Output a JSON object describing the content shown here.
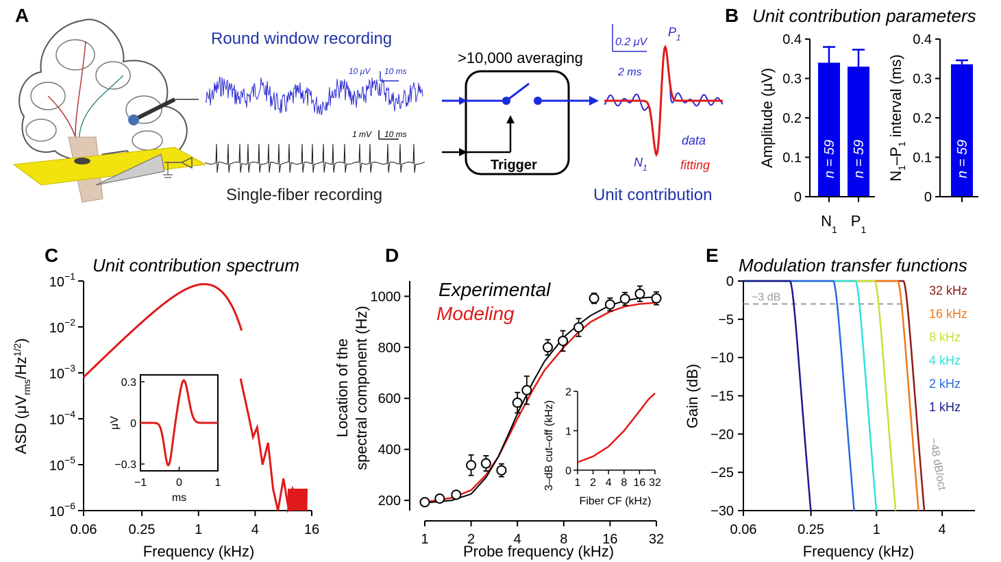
{
  "panels": {
    "A": {
      "letter": "A",
      "rw_title": "Round window recording",
      "rw_scale_uv": "10 μV",
      "rw_scale_ms": "10 ms",
      "sf_title": "Single-fiber recording",
      "sf_scale_mv": "1 mV",
      "sf_scale_ms": "10 ms",
      "averaging": ">10,000 averaging",
      "trigger": "Trigger",
      "uc_scale_uv": "0.2 μV",
      "uc_scale_ms": "2 ms",
      "p1": "P",
      "n1": "N",
      "sub1": "1",
      "legend_data": "data",
      "legend_fit": "fitting",
      "uc_title": "Unit contribution"
    },
    "B": {
      "letter": "B",
      "title": "Unit contribution parameters",
      "ylabel_left": "Amplitude (μV)",
      "ylabel_right_parts": [
        "N",
        "1",
        "–P",
        "1",
        " interval (ms)"
      ],
      "bar_n_label": "n = 59",
      "yticks": [
        "0",
        "0.1",
        "0.2",
        "0.3",
        "0.4"
      ],
      "xcat_parts": [
        [
          "N",
          "1"
        ],
        [
          "P",
          "1"
        ]
      ]
    },
    "C": {
      "letter": "C",
      "title": "Unit contribution spectrum",
      "xlabel": "Frequency (kHz)",
      "ylabel_parts": [
        "ASD (μV",
        "rms",
        "/Hz",
        "1/2",
        ")"
      ],
      "xticks": [
        "0.06",
        "0.25",
        "1",
        "4",
        "16"
      ],
      "ytick_base": "10",
      "ytick_exps": [
        "−1",
        "−2",
        "−3",
        "−4",
        "−5",
        "−6"
      ],
      "inset_yticks": [
        "0.3",
        "0",
        "−0.3"
      ],
      "inset_xticks": [
        "−1",
        "0",
        "1"
      ],
      "inset_ylabel": "μV",
      "inset_xlabel": "ms"
    },
    "D": {
      "letter": "D",
      "legend_exp": "Experimental",
      "legend_mod": "Modeling",
      "xlabel": "Probe frequency (kHz)",
      "ylabel_line1": "Location of the",
      "ylabel_line2": "spectral component (Hz)",
      "xticks": [
        "1",
        "2",
        "4",
        "8",
        "16",
        "32"
      ],
      "yticks": [
        "200",
        "400",
        "600",
        "800",
        "1000"
      ],
      "inset_ylabel": "3–dB cut–off (kHz)",
      "inset_xlabel": "Fiber CF (kHz)",
      "inset_xticks": [
        "1",
        "2",
        "4",
        "8",
        "16",
        "32"
      ],
      "inset_yticks": [
        "0",
        "1",
        "2"
      ]
    },
    "E": {
      "letter": "E",
      "title": "Modulation transfer functions",
      "xlabel": "Frequency (kHz)",
      "ylabel": "Gain (dB)",
      "xticks": [
        "0.06",
        "0.25",
        "1",
        "4"
      ],
      "yticks": [
        "0",
        "−5",
        "−10",
        "−15",
        "−20",
        "−25",
        "−30"
      ],
      "ref_label": "−3 dB",
      "slope_label": "−48 dB/oct"
    }
  },
  "colors": {
    "blue_bar": "#0000ee",
    "red": "#e01a1a",
    "trace_blue": "#2a2ad0",
    "text_blue": "#2233aa",
    "gray": "#999999"
  },
  "chart_data": [
    {
      "id": "B-amplitude",
      "type": "bar",
      "title": "Unit contribution parameters",
      "ylabel": "Amplitude (μV)",
      "categories": [
        "N1",
        "P1"
      ],
      "values": [
        0.34,
        0.33
      ],
      "errors": [
        0.04,
        0.043
      ],
      "ylim": [
        0,
        0.4
      ],
      "bar_labels": [
        "n = 59",
        "n = 59"
      ]
    },
    {
      "id": "B-interval",
      "type": "bar",
      "ylabel": "N1–P1 interval (ms)",
      "categories": [
        ""
      ],
      "values": [
        0.336
      ],
      "errors": [
        0.01
      ],
      "ylim": [
        0,
        0.4
      ],
      "bar_labels": [
        "n = 59"
      ]
    },
    {
      "id": "C-spectrum",
      "type": "line",
      "title": "Unit contribution spectrum",
      "xlabel": "Frequency (kHz)",
      "ylabel": "ASD (μVrms/Hz1/2)",
      "xscale": "log",
      "yscale": "log",
      "xlim": [
        0.06,
        16
      ],
      "ylim": [
        1e-06,
        0.1
      ],
      "x": [
        0.06,
        0.125,
        0.25,
        0.5,
        0.75,
        1,
        1.3,
        1.7,
        2.2,
        2.8,
        3.4,
        3.8,
        4.2,
        4.8,
        5.5,
        6.2,
        7,
        8,
        9,
        10,
        12,
        14
      ],
      "y": [
        0.0009,
        0.004,
        0.016,
        0.05,
        0.075,
        0.083,
        0.07,
        0.03,
        0.006,
        0.00075,
        0.00012,
        4e-05,
        6.5e-05,
        1e-05,
        3e-05,
        3e-06,
        1e-06,
        5e-06,
        1.2e-06,
        3e-06,
        1.5e-06,
        2e-06
      ]
    },
    {
      "id": "C-inset-waveform",
      "type": "line",
      "xlabel": "ms",
      "ylabel": "μV",
      "xlim": [
        -1,
        1
      ],
      "ylim": [
        -0.35,
        0.35
      ],
      "x": [
        -1,
        -0.6,
        -0.45,
        -0.3,
        -0.15,
        0,
        0.15,
        0.3,
        0.45,
        0.6,
        1
      ],
      "y": [
        0,
        0,
        -0.05,
        -0.3,
        -0.15,
        0.12,
        0.31,
        0.18,
        0.02,
        0,
        0
      ]
    },
    {
      "id": "D-main",
      "type": "scatter",
      "xlabel": "Probe frequency (kHz)",
      "ylabel": "Location of the spectral component (Hz)",
      "xscale": "log",
      "xlim": [
        1,
        32
      ],
      "ylim": [
        160,
        1060
      ],
      "series": [
        {
          "name": "Experimental",
          "x": [
            1,
            1.25,
            1.6,
            2,
            2.5,
            3.15,
            4,
            4.6,
            6.3,
            7.9,
            10,
            12.6,
            16,
            20,
            25,
            32
          ],
          "y": [
            193,
            207,
            222,
            338,
            345,
            318,
            583,
            632,
            800,
            825,
            878,
            992,
            968,
            990,
            1010,
            992
          ],
          "err": [
            10,
            10,
            10,
            40,
            30,
            25,
            40,
            55,
            30,
            40,
            35,
            20,
            25,
            25,
            30,
            25
          ],
          "fit_x": [
            1,
            1.5,
            2,
            2.5,
            3,
            3.5,
            4,
            5,
            6,
            8,
            10,
            12,
            16,
            20,
            25,
            32
          ],
          "fit_y": [
            190,
            200,
            225,
            290,
            370,
            460,
            540,
            660,
            745,
            840,
            890,
            925,
            965,
            983,
            993,
            998
          ]
        },
        {
          "name": "Modeling",
          "x": [
            1,
            1.5,
            2,
            2.5,
            3,
            3.5,
            4,
            5,
            6,
            8,
            10,
            12,
            16,
            20,
            25,
            32
          ],
          "y": [
            193,
            210,
            240,
            300,
            370,
            450,
            520,
            630,
            710,
            800,
            860,
            900,
            940,
            960,
            970,
            975
          ]
        }
      ]
    },
    {
      "id": "D-inset",
      "type": "line",
      "xlabel": "Fiber CF (kHz)",
      "ylabel": "3–dB cut–off (kHz)",
      "xscale": "log",
      "xlim": [
        1,
        32
      ],
      "ylim": [
        0,
        2
      ],
      "x": [
        1,
        2,
        4,
        8,
        16,
        24,
        32
      ],
      "y": [
        0.2,
        0.35,
        0.6,
        1.0,
        1.5,
        1.8,
        1.95
      ]
    },
    {
      "id": "E-mtf",
      "type": "line",
      "title": "Modulation transfer functions",
      "xlabel": "Frequency (kHz)",
      "ylabel": "Gain (dB)",
      "xscale": "log",
      "xlim": [
        0.06,
        8
      ],
      "ylim": [
        -30,
        0
      ],
      "reference_line_db": -3,
      "series": [
        {
          "name": "32 kHz",
          "color": "#8b1a1a",
          "cutoff_khz": 2.2,
          "slope_db_per_oct": -48
        },
        {
          "name": "16 kHz",
          "color": "#f07a1a",
          "cutoff_khz": 1.95,
          "slope_db_per_oct": -48
        },
        {
          "name": "8 kHz",
          "color": "#c8e03a",
          "cutoff_khz": 1.2,
          "slope_db_per_oct": -48
        },
        {
          "name": "4 kHz",
          "color": "#2ee0e0",
          "cutoff_khz": 0.8,
          "slope_db_per_oct": -48
        },
        {
          "name": "2 kHz",
          "color": "#2a6ae0",
          "cutoff_khz": 0.5,
          "slope_db_per_oct": -48
        },
        {
          "name": "1 kHz",
          "color": "#1a1a8c",
          "cutoff_khz": 0.2,
          "slope_db_per_oct": -48
        }
      ]
    }
  ]
}
